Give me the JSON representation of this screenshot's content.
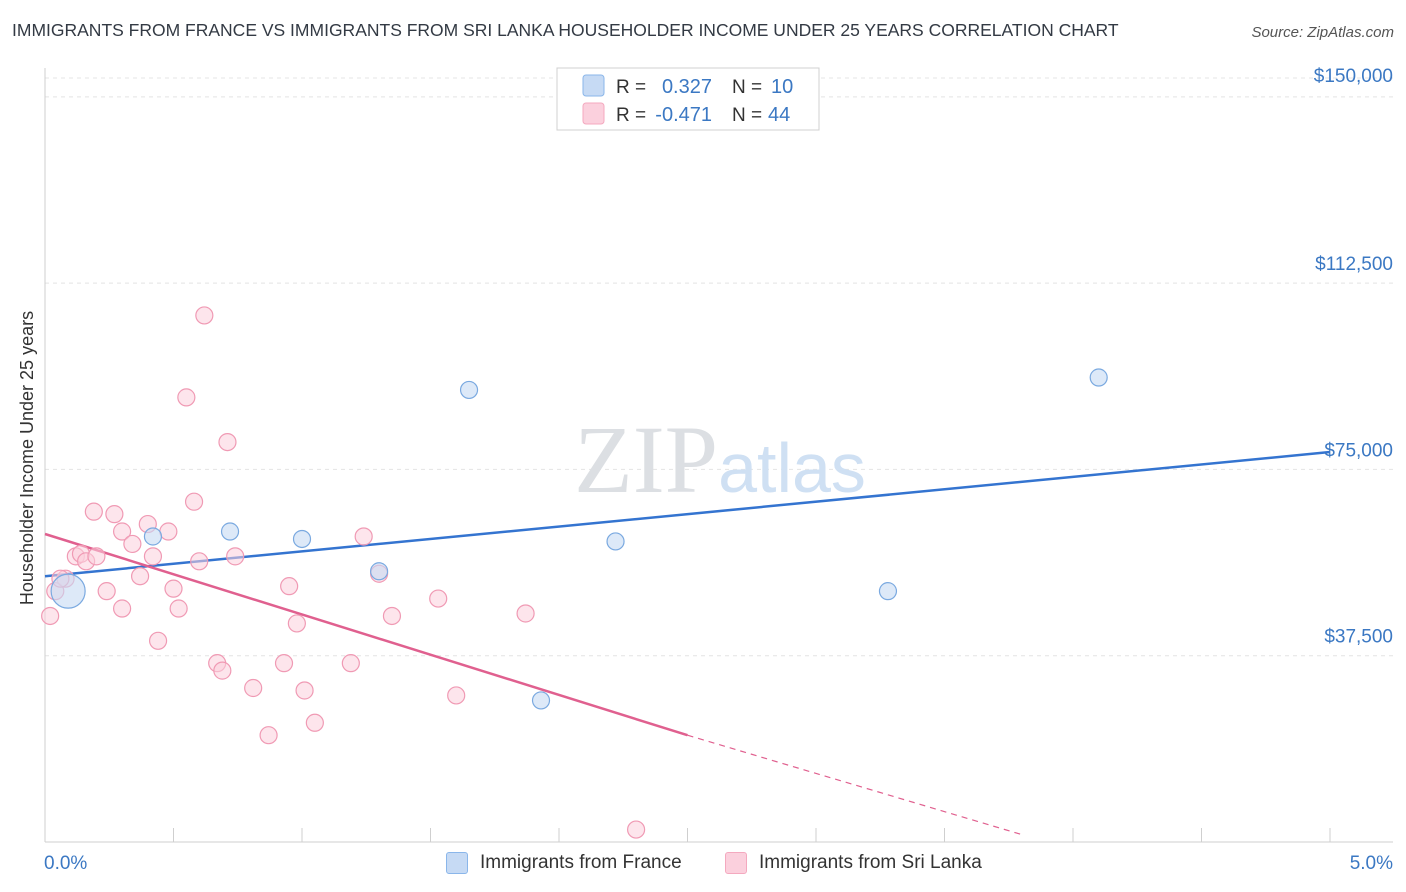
{
  "chart_data": {
    "type": "scatter",
    "title": "IMMIGRANTS FROM FRANCE VS IMMIGRANTS FROM SRI LANKA HOUSEHOLDER INCOME UNDER 25 YEARS CORRELATION CHART",
    "source": "Source: ZipAtlas.com",
    "watermark": "ZIPatlas",
    "xlabel": "",
    "ylabel": "Householder Income Under 25 years",
    "xlim": [
      0,
      5
    ],
    "ylim": [
      0,
      155000
    ],
    "x_tick_labels": [
      "0.0%",
      "5.0%"
    ],
    "y_ticks": [
      37500,
      75000,
      112500,
      150000
    ],
    "y_tick_labels": [
      "$37,500",
      "$75,000",
      "$112,500",
      "$150,000"
    ],
    "grid": true,
    "series": [
      {
        "name": "Immigrants from France",
        "color": "#8ab6ea",
        "line_color": "#3474d0",
        "R": "0.327",
        "N": "10",
        "trend": [
          [
            0.0,
            53500
          ],
          [
            5.0,
            78500
          ]
        ],
        "points": [
          [
            0.09,
            50500,
            "large"
          ],
          [
            0.42,
            61500
          ],
          [
            0.72,
            62500
          ],
          [
            1.0,
            61000
          ],
          [
            1.3,
            54500
          ],
          [
            1.65,
            91000
          ],
          [
            1.93,
            28500
          ],
          [
            2.22,
            60500
          ],
          [
            3.28,
            50500
          ],
          [
            4.1,
            93500
          ]
        ]
      },
      {
        "name": "Immigrants from Sri Lanka",
        "color": "#f4a9bf",
        "line_color": "#e0608f",
        "R": "-0.471",
        "N": "44",
        "trend_solid": [
          [
            0.0,
            62000
          ],
          [
            2.5,
            21500
          ]
        ],
        "trend_dashed": [
          [
            2.5,
            21500
          ],
          [
            3.8,
            1500
          ]
        ],
        "points": [
          [
            0.02,
            45500
          ],
          [
            0.04,
            50500
          ],
          [
            0.08,
            53000
          ],
          [
            0.12,
            57500
          ],
          [
            0.14,
            58000
          ],
          [
            0.16,
            56500
          ],
          [
            0.19,
            66500
          ],
          [
            0.2,
            57500
          ],
          [
            0.24,
            50500
          ],
          [
            0.27,
            66000
          ],
          [
            0.3,
            47000
          ],
          [
            0.3,
            62500
          ],
          [
            0.34,
            60000
          ],
          [
            0.37,
            53500
          ],
          [
            0.4,
            64000
          ],
          [
            0.42,
            57500
          ],
          [
            0.44,
            40500
          ],
          [
            0.48,
            62500
          ],
          [
            0.5,
            51000
          ],
          [
            0.52,
            47000
          ],
          [
            0.55,
            89500
          ],
          [
            0.58,
            68500
          ],
          [
            0.6,
            56500
          ],
          [
            0.62,
            106000
          ],
          [
            0.67,
            36000
          ],
          [
            0.69,
            34500
          ],
          [
            0.71,
            80500
          ],
          [
            0.74,
            57500
          ],
          [
            0.81,
            31000
          ],
          [
            0.87,
            21500
          ],
          [
            0.93,
            36000
          ],
          [
            0.95,
            51500
          ],
          [
            0.98,
            44000
          ],
          [
            1.01,
            30500
          ],
          [
            1.05,
            24000
          ],
          [
            1.19,
            36000
          ],
          [
            1.24,
            61500
          ],
          [
            1.3,
            54000
          ],
          [
            1.35,
            45500
          ],
          [
            1.53,
            49000
          ],
          [
            1.6,
            29500
          ],
          [
            1.87,
            46000
          ],
          [
            2.3,
            2500
          ],
          [
            0.06,
            53000
          ]
        ]
      }
    ]
  }
}
